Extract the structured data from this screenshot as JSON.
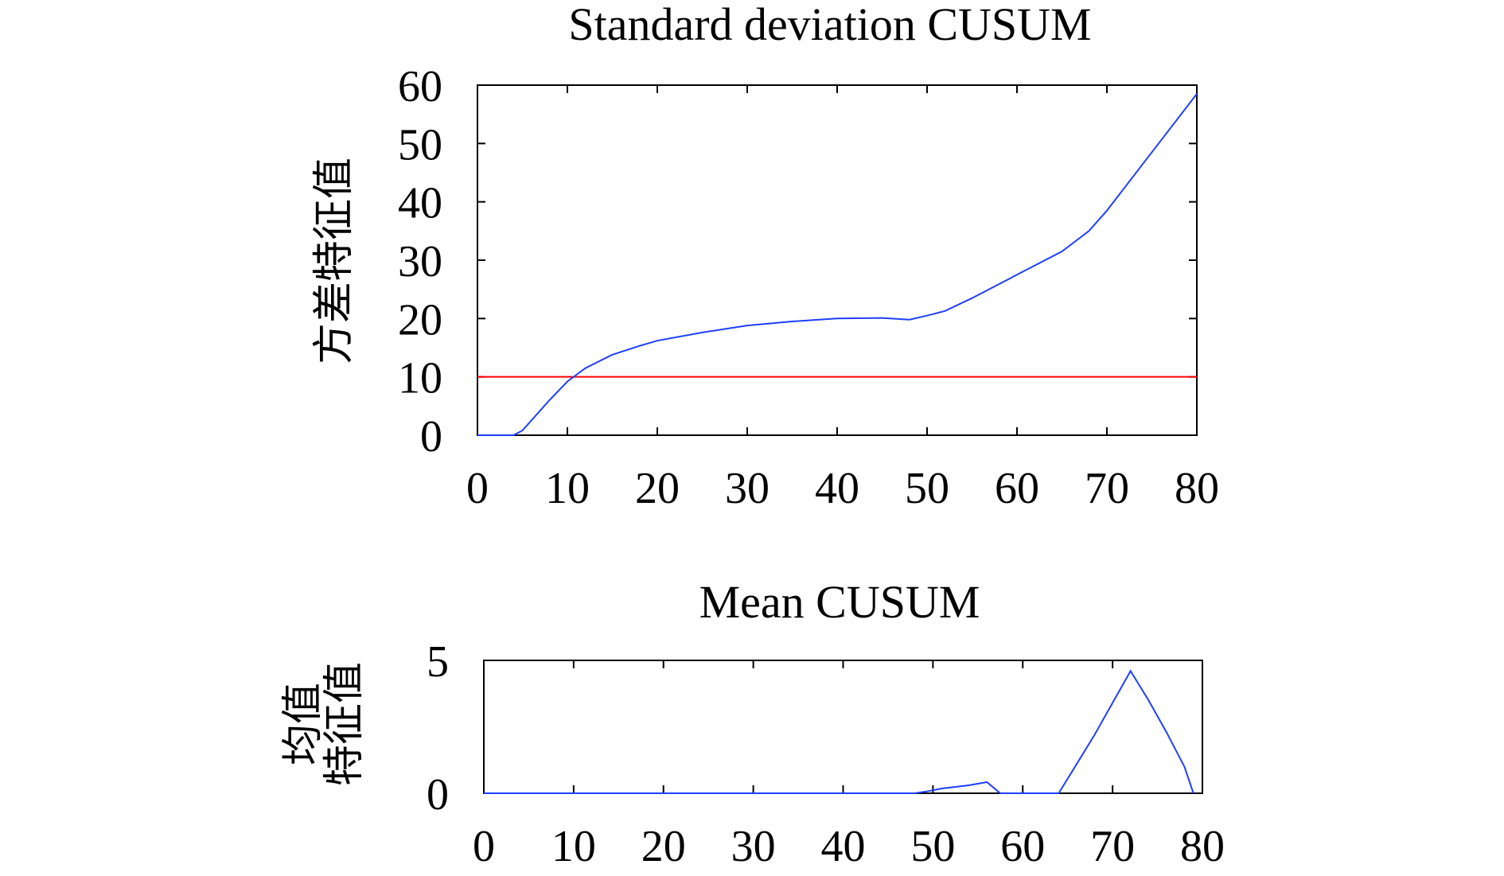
{
  "chart_data": [
    {
      "type": "line",
      "title": "Standard deviation CUSUM",
      "ylabel": "方差特征值",
      "xlabel": "",
      "xlim": [
        0,
        80
      ],
      "ylim": [
        0,
        60
      ],
      "xticks": [
        0,
        10,
        20,
        30,
        40,
        50,
        60,
        70,
        80
      ],
      "yticks": [
        0,
        10,
        20,
        30,
        40,
        50,
        60
      ],
      "grid": false,
      "series": [
        {
          "color": "#1f3fff",
          "x": [
            0,
            4,
            5,
            8,
            10,
            12,
            15,
            18,
            20,
            25,
            30,
            35,
            40,
            45,
            48,
            50,
            52,
            55,
            60,
            65,
            68,
            70,
            75,
            80
          ],
          "y": [
            0,
            0,
            0.8,
            6,
            9.2,
            11.5,
            13.8,
            15.3,
            16.2,
            17.6,
            18.8,
            19.5,
            20,
            20.1,
            19.8,
            20.5,
            21.3,
            23.5,
            27.5,
            31.5,
            35,
            38.5,
            48.5,
            58.5
          ]
        }
      ],
      "threshold": {
        "y": 10,
        "color": "#ff0000"
      }
    },
    {
      "type": "line",
      "title": "Mean CUSUM",
      "ylabel": [
        "均值",
        "特征值"
      ],
      "xlabel": "",
      "xlim": [
        0,
        80
      ],
      "ylim": [
        0,
        5
      ],
      "xticks": [
        0,
        10,
        20,
        30,
        40,
        50,
        60,
        70,
        80
      ],
      "yticks": [
        0,
        5
      ],
      "grid": false,
      "series": [
        {
          "color": "#1f3fff",
          "x": [
            0,
            48,
            49.5,
            51,
            54,
            56,
            57.5,
            60,
            64,
            66,
            68,
            70,
            72,
            74,
            76,
            78,
            79
          ],
          "y": [
            0,
            0,
            0.08,
            0.18,
            0.3,
            0.42,
            0,
            0,
            0,
            1.1,
            2.2,
            3.4,
            4.6,
            3.5,
            2.3,
            1.0,
            0
          ]
        }
      ]
    }
  ]
}
